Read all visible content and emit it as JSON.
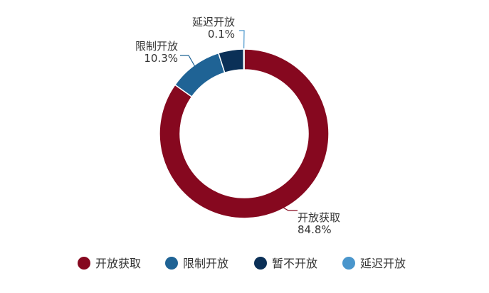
{
  "chart_data": {
    "type": "pie",
    "donut": true,
    "series": [
      {
        "name": "开放获取",
        "value": 84.8,
        "label": "84.8%",
        "color": "#86081f"
      },
      {
        "name": "限制开放",
        "value": 10.3,
        "label": "10.3%",
        "color": "#1f6395"
      },
      {
        "name": "暂不开放",
        "value": 4.8,
        "label": "",
        "color": "#0b3057"
      },
      {
        "name": "延迟开放",
        "value": 0.1,
        "label": "0.1%",
        "color": "#4a96cc"
      }
    ],
    "legend": {
      "position": "bottom",
      "items": [
        "开放获取",
        "限制开放",
        "暂不开放",
        "延迟开放"
      ]
    }
  }
}
